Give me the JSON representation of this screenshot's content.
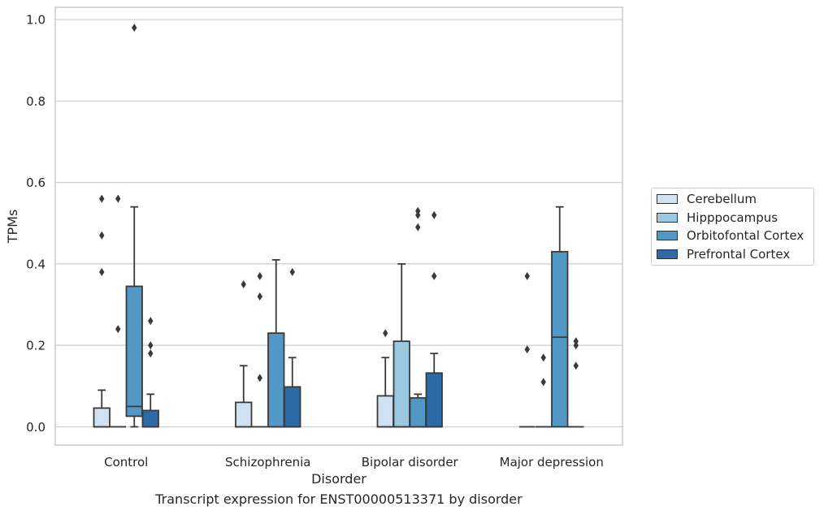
{
  "chart_data": {
    "type": "box",
    "title": "",
    "xlabel": "Disorder",
    "ylabel": "TPMs",
    "caption": "Transcript expression for ENST00000513371 by disorder",
    "ylim": [
      -0.045,
      1.03
    ],
    "yticks": [
      "0.0",
      "0.2",
      "0.4",
      "0.6",
      "0.8",
      "1.0"
    ],
    "grid": "horizontal",
    "legend_position": "outside right",
    "categories": [
      "Control",
      "Schizophrenia",
      "Bipolar disorder",
      "Major depression"
    ],
    "series": [
      {
        "name": "Cerebellum",
        "color": "#d0e1f2",
        "boxes": [
          {
            "q1": 0.0,
            "median": 0.0,
            "q3": 0.046,
            "whisker_low": 0.0,
            "whisker_high": 0.09,
            "outliers": [
              0.56,
              0.47,
              0.38
            ]
          },
          {
            "q1": 0.0,
            "median": 0.0,
            "q3": 0.06,
            "whisker_low": 0.0,
            "whisker_high": 0.15,
            "outliers": [
              0.35
            ]
          },
          {
            "q1": 0.0,
            "median": 0.0,
            "q3": 0.076,
            "whisker_low": 0.0,
            "whisker_high": 0.17,
            "outliers": [
              0.23
            ]
          },
          {
            "q1": 0.0,
            "median": 0.0,
            "q3": 0.0,
            "whisker_low": 0.0,
            "whisker_high": 0.0,
            "outliers": [
              0.37,
              0.19
            ]
          }
        ]
      },
      {
        "name": "Hipppocampus",
        "color": "#9ac8e0",
        "boxes": [
          {
            "q1": 0.0,
            "median": 0.0,
            "q3": 0.0,
            "whisker_low": 0.0,
            "whisker_high": 0.0,
            "outliers": [
              0.56,
              0.24
            ]
          },
          {
            "q1": 0.0,
            "median": 0.0,
            "q3": 0.0,
            "whisker_low": 0.0,
            "whisker_high": 0.0,
            "outliers": [
              0.37,
              0.32,
              0.12
            ]
          },
          {
            "q1": 0.0,
            "median": 0.0,
            "q3": 0.21,
            "whisker_low": 0.0,
            "whisker_high": 0.4,
            "outliers": []
          },
          {
            "q1": 0.0,
            "median": 0.0,
            "q3": 0.0,
            "whisker_low": 0.0,
            "whisker_high": 0.0,
            "outliers": [
              0.17,
              0.11
            ]
          }
        ]
      },
      {
        "name": "Orbitofontal Cortex",
        "color": "#5198c6",
        "boxes": [
          {
            "q1": 0.026,
            "median": 0.05,
            "q3": 0.345,
            "whisker_low": 0.0,
            "whisker_high": 0.54,
            "outliers": [
              0.98
            ]
          },
          {
            "q1": 0.0,
            "median": 0.0,
            "q3": 0.23,
            "whisker_low": 0.0,
            "whisker_high": 0.41,
            "outliers": []
          },
          {
            "q1": 0.0,
            "median": 0.0,
            "q3": 0.071,
            "whisker_low": 0.0,
            "whisker_high": 0.08,
            "outliers": [
              0.53,
              0.52,
              0.49
            ]
          },
          {
            "q1": 0.0,
            "median": 0.22,
            "q3": 0.43,
            "whisker_low": 0.0,
            "whisker_high": 0.54,
            "outliers": []
          }
        ]
      },
      {
        "name": "Prefrontal Cortex",
        "color": "#2b6ca8",
        "boxes": [
          {
            "q1": 0.0,
            "median": 0.0,
            "q3": 0.04,
            "whisker_low": 0.0,
            "whisker_high": 0.08,
            "outliers": [
              0.26,
              0.2,
              0.18
            ]
          },
          {
            "q1": 0.0,
            "median": 0.0,
            "q3": 0.098,
            "whisker_low": 0.0,
            "whisker_high": 0.17,
            "outliers": [
              0.38
            ]
          },
          {
            "q1": 0.0,
            "median": 0.0,
            "q3": 0.132,
            "whisker_low": 0.0,
            "whisker_high": 0.18,
            "outliers": [
              0.52,
              0.37
            ]
          },
          {
            "q1": 0.0,
            "median": 0.0,
            "q3": 0.0,
            "whisker_low": 0.0,
            "whisker_high": 0.0,
            "outliers": [
              0.21,
              0.2,
              0.15
            ]
          }
        ]
      }
    ]
  }
}
